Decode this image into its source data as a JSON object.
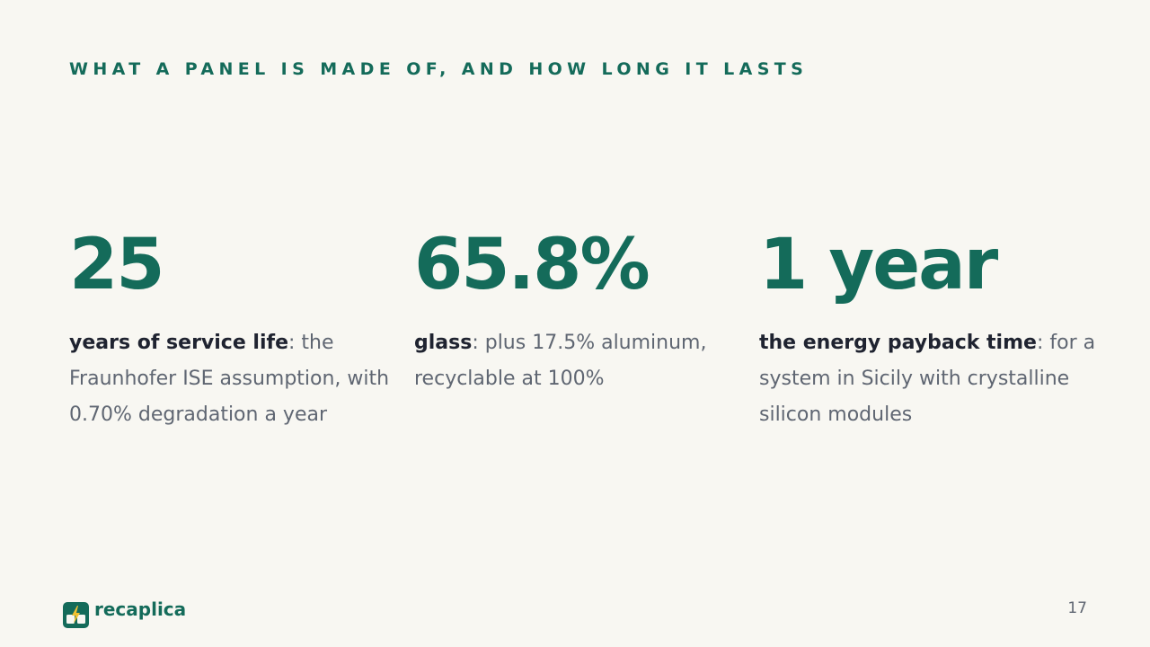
{
  "header": {
    "title": "WHAT A PANEL IS MADE OF, AND HOW LONG IT LASTS"
  },
  "stats": [
    {
      "value": "25",
      "label_bold": "years of service life",
      "label_rest": ": the Fraunhofer ISE assumption, with 0.70% degradation a year"
    },
    {
      "value": "65.8%",
      "label_bold": "glass",
      "label_rest": ": plus 17.5% aluminum, recyclable at 100%"
    },
    {
      "value": "1 year",
      "label_bold": "the energy payback time",
      "label_rest": ": for a system in Sicily with crystalline silicon modules"
    }
  ],
  "footer": {
    "brand": "recaplica",
    "page_number": "17"
  }
}
